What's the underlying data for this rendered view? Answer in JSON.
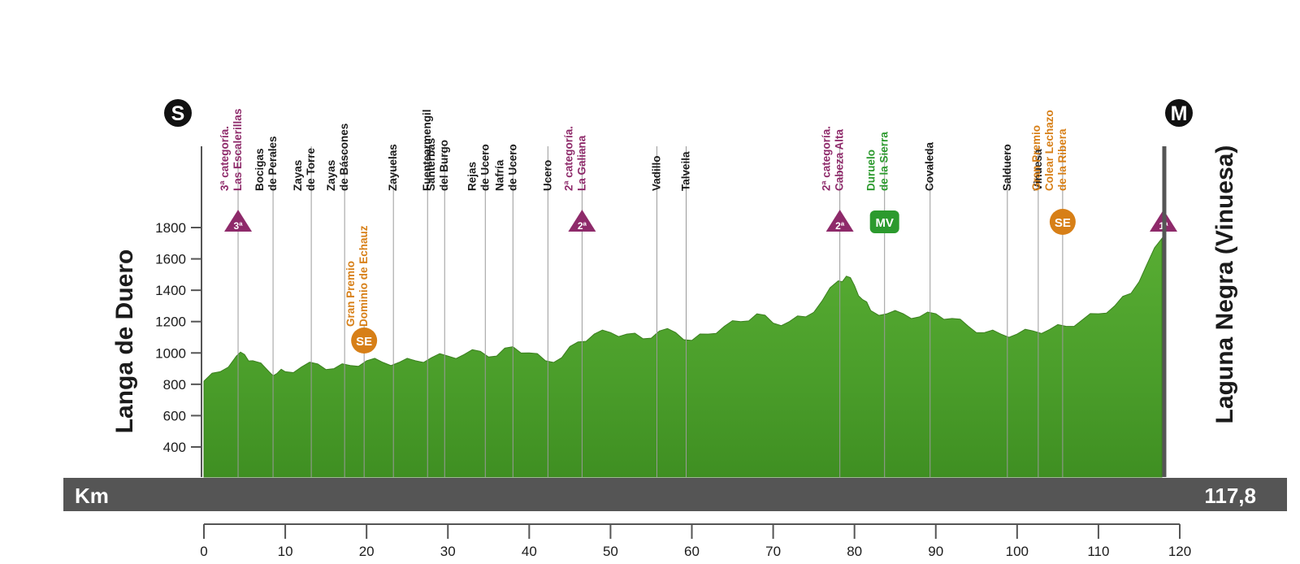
{
  "chart_data": {
    "type": "area",
    "start_marker": "S",
    "finish_marker": "M",
    "start_town": "Langa de Duero",
    "finish_town": "Laguna Negra (Vinuesa)",
    "axis_label": "Km",
    "total_distance": "117,8",
    "xlim": [
      0,
      120
    ],
    "x_ticks": [
      0,
      10,
      20,
      30,
      40,
      50,
      60,
      70,
      80,
      90,
      100,
      110,
      120
    ],
    "y_ticks": [
      400,
      600,
      800,
      1000,
      1200,
      1400,
      1600,
      1800
    ],
    "profile": {
      "km": [
        0,
        2,
        4,
        5,
        6,
        8,
        9,
        10,
        12,
        14,
        16,
        18,
        20,
        22,
        24,
        26,
        28,
        30,
        32,
        34,
        36,
        38,
        40,
        42,
        44,
        46,
        48,
        50,
        52,
        54,
        56,
        58,
        60,
        62,
        64,
        66,
        68,
        70,
        72,
        74,
        76,
        78,
        79,
        80,
        81,
        82,
        84,
        86,
        88,
        90,
        92,
        94,
        96,
        98,
        100,
        102,
        104,
        106,
        108,
        110,
        112,
        114,
        116,
        117.8
      ],
      "alt": [
        820,
        880,
        980,
        990,
        950,
        880,
        870,
        880,
        910,
        930,
        900,
        920,
        950,
        940,
        940,
        950,
        970,
        980,
        990,
        1010,
        980,
        1040,
        1000,
        950,
        970,
        1070,
        1120,
        1130,
        1120,
        1090,
        1140,
        1130,
        1080,
        1120,
        1170,
        1200,
        1250,
        1190,
        1200,
        1230,
        1330,
        1460,
        1490,
        1430,
        1340,
        1270,
        1250,
        1250,
        1230,
        1250,
        1220,
        1170,
        1130,
        1120,
        1120,
        1140,
        1150,
        1170,
        1210,
        1250,
        1300,
        1380,
        1570,
        1730
      ]
    },
    "points": [
      {
        "km": 4.2,
        "label": [
          "3ª categoría.",
          "Las Escalerillas"
        ],
        "type": "climb",
        "badge": "3ª"
      },
      {
        "km": 8.5,
        "label": [
          "Bocigas",
          "de Perales"
        ],
        "type": "town"
      },
      {
        "km": 13.2,
        "label": [
          "Zayas",
          "de Torre"
        ],
        "type": "town"
      },
      {
        "km": 17.3,
        "label": [
          "Zayas",
          "de Báscones"
        ],
        "type": "town"
      },
      {
        "km": 19.7,
        "label": [
          "Gran Premio",
          "Dominio de Echauz"
        ],
        "type": "sprint",
        "badge": "SE"
      },
      {
        "km": 23.3,
        "label": [
          "Zayuelas"
        ],
        "type": "town"
      },
      {
        "km": 27.5,
        "label": [
          "Fuentearmengil"
        ],
        "type": "town"
      },
      {
        "km": 29.6,
        "label": [
          "Santerbás",
          "del Burgo"
        ],
        "type": "town"
      },
      {
        "km": 34.6,
        "label": [
          "Rejas",
          "de Ucero"
        ],
        "type": "town"
      },
      {
        "km": 38.0,
        "label": [
          "Nafría",
          "de Ucero"
        ],
        "type": "town"
      },
      {
        "km": 42.3,
        "label": [
          "Ucero"
        ],
        "type": "town"
      },
      {
        "km": 46.5,
        "label": [
          "2ª categoría.",
          "La Galiana"
        ],
        "type": "climb",
        "badge": "2ª"
      },
      {
        "km": 55.7,
        "label": [
          "Vadillo"
        ],
        "type": "town"
      },
      {
        "km": 59.3,
        "label": [
          "Talveila"
        ],
        "type": "town"
      },
      {
        "km": 78.2,
        "label": [
          "2ª categoría.",
          "Cabeza Alta"
        ],
        "type": "climb",
        "badge": "2ª"
      },
      {
        "km": 83.7,
        "label": [
          "Duruelo",
          "de la Sierra"
        ],
        "type": "mv",
        "badge": "MV"
      },
      {
        "km": 89.3,
        "label": [
          "Covaleda"
        ],
        "type": "town"
      },
      {
        "km": 98.8,
        "label": [
          "Salduero"
        ],
        "type": "town"
      },
      {
        "km": 102.6,
        "label": [
          "Vinuesa"
        ],
        "type": "town"
      },
      {
        "km": 105.6,
        "label": [
          "Gran Premio",
          "Colear Lechazo",
          "de la Ribera"
        ],
        "type": "sprint",
        "badge": "SE"
      },
      {
        "km": 118.0,
        "label": [],
        "type": "climb",
        "badge": "1ª"
      }
    ],
    "colors": {
      "profile": "#4fa32c",
      "profile_dark": "#3a7f1e",
      "band": "#555555",
      "climb": "#8e2a6a",
      "sprint": "#d77f17",
      "mv": "#2c9a2e",
      "town": "#1b1b1b"
    }
  }
}
